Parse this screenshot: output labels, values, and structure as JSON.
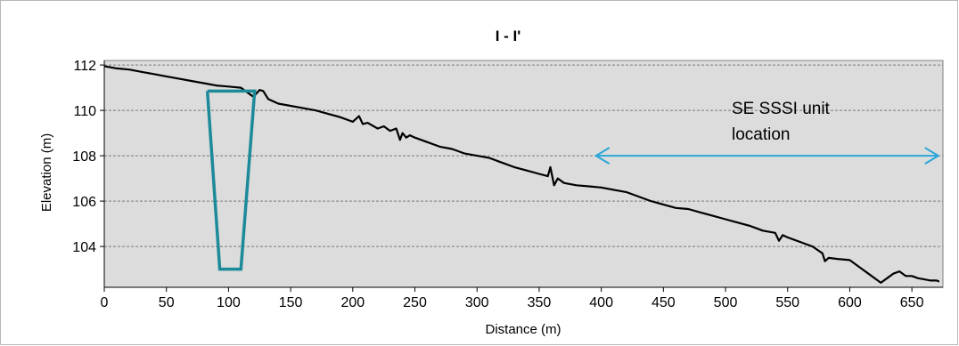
{
  "chart_data": {
    "type": "line",
    "title": "I - I'",
    "xlabel": "Distance (m)",
    "ylabel": "Elevation (m)",
    "xlim": [
      0,
      675
    ],
    "ylim": [
      102.2,
      112.2
    ],
    "xticks": [
      0,
      50,
      100,
      150,
      200,
      250,
      300,
      350,
      400,
      450,
      500,
      550,
      600,
      650
    ],
    "yticks": [
      104,
      106,
      108,
      110,
      112
    ],
    "grid": "horizontal dashed",
    "plot_background": "#dcdcdc",
    "series": [
      {
        "color": "#000000",
        "x": [
          0,
          10,
          20,
          30,
          40,
          50,
          60,
          70,
          80,
          90,
          100,
          110,
          115,
          120,
          125,
          128,
          132,
          140,
          150,
          160,
          170,
          180,
          190,
          200,
          205,
          208,
          212,
          220,
          225,
          230,
          235,
          238,
          240,
          243,
          246,
          250,
          260,
          270,
          280,
          290,
          300,
          310,
          320,
          330,
          340,
          350,
          357,
          359,
          362,
          365,
          370,
          380,
          390,
          400,
          410,
          420,
          430,
          440,
          450,
          460,
          470,
          480,
          490,
          500,
          510,
          520,
          530,
          540,
          543,
          546,
          550,
          560,
          570,
          578,
          580,
          583,
          590,
          600,
          605,
          610,
          615,
          620,
          625,
          630,
          635,
          640,
          645,
          650,
          655,
          660,
          665,
          670,
          672
        ],
        "y": [
          111.95,
          111.85,
          111.8,
          111.7,
          111.6,
          111.5,
          111.4,
          111.3,
          111.2,
          111.1,
          111.05,
          111.0,
          110.8,
          110.6,
          110.9,
          110.85,
          110.5,
          110.3,
          110.2,
          110.1,
          110.0,
          109.85,
          109.7,
          109.5,
          109.75,
          109.4,
          109.45,
          109.2,
          109.3,
          109.1,
          109.2,
          108.7,
          109.0,
          108.8,
          108.9,
          108.8,
          108.6,
          108.4,
          108.3,
          108.1,
          108.0,
          107.9,
          107.7,
          107.5,
          107.35,
          107.2,
          107.1,
          107.5,
          106.7,
          107.0,
          106.8,
          106.7,
          106.65,
          106.6,
          106.5,
          106.4,
          106.2,
          106.0,
          105.85,
          105.7,
          105.65,
          105.5,
          105.35,
          105.2,
          105.05,
          104.9,
          104.7,
          104.6,
          104.25,
          104.5,
          104.4,
          104.2,
          104.0,
          103.7,
          103.35,
          103.5,
          103.45,
          103.4,
          103.2,
          103.0,
          102.8,
          102.6,
          102.4,
          102.6,
          102.8,
          102.9,
          102.7,
          102.7,
          102.6,
          102.55,
          102.5,
          102.5,
          102.45
        ]
      }
    ],
    "trench_outline": {
      "color": "#1d8a9a",
      "x": [
        83,
        121,
        110,
        93,
        83
      ],
      "y": [
        110.85,
        110.85,
        103.0,
        103.0,
        110.85
      ]
    },
    "annotations": [
      {
        "text_lines": [
          "SE SSSI unit",
          "location"
        ],
        "arrow_x": [
          395,
          672
        ],
        "arrow_y": 108.0,
        "arrow_color": "#2aa7d8"
      }
    ]
  }
}
